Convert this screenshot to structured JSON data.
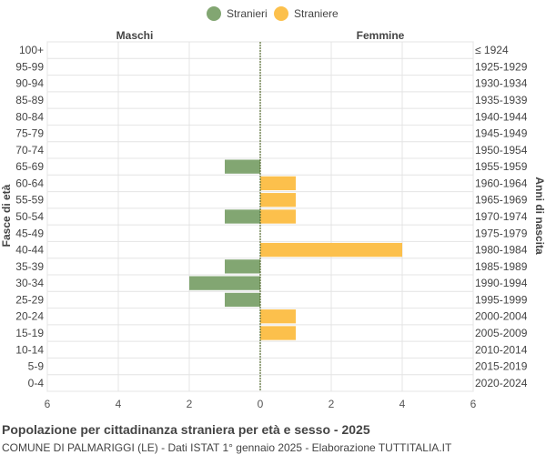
{
  "chart_data": {
    "type": "bar",
    "orientation": "horizontal-pyramid",
    "legend": {
      "position": "top-center",
      "items": [
        {
          "label": "Stranieri",
          "color": "#82a672"
        },
        {
          "label": "Straniere",
          "color": "#fcc04c"
        }
      ]
    },
    "left_header": "Maschi",
    "right_header": "Femmine",
    "ylabel_left": "Fasce di età",
    "ylabel_right": "Anni di nascita",
    "x_ticks": [
      "6",
      "4",
      "2",
      "0",
      "2",
      "4",
      "6"
    ],
    "xlim": [
      -6,
      6
    ],
    "grid": true,
    "categories": [
      "100+",
      "95-99",
      "90-94",
      "85-89",
      "80-84",
      "75-79",
      "70-74",
      "65-69",
      "60-64",
      "55-59",
      "50-54",
      "45-49",
      "40-44",
      "35-39",
      "30-34",
      "25-29",
      "20-24",
      "15-19",
      "10-14",
      "5-9",
      "0-4"
    ],
    "birth_years": [
      "≤ 1924",
      "1925-1929",
      "1930-1934",
      "1935-1939",
      "1940-1944",
      "1945-1949",
      "1950-1954",
      "1955-1959",
      "1960-1964",
      "1965-1969",
      "1970-1974",
      "1975-1979",
      "1980-1984",
      "1985-1989",
      "1990-1994",
      "1995-1999",
      "2000-2004",
      "2005-2009",
      "2010-2014",
      "2015-2019",
      "2020-2024"
    ],
    "series": [
      {
        "name": "Stranieri",
        "side": "left",
        "values": [
          0,
          0,
          0,
          0,
          0,
          0,
          0,
          1,
          0,
          0,
          1,
          0,
          0,
          1,
          2,
          1,
          0,
          0,
          0,
          0,
          0
        ]
      },
      {
        "name": "Straniere",
        "side": "right",
        "values": [
          0,
          0,
          0,
          0,
          0,
          0,
          0,
          0,
          1,
          1,
          1,
          0,
          4,
          0,
          0,
          0,
          1,
          1,
          0,
          0,
          0
        ]
      }
    ]
  },
  "footer": {
    "title": "Popolazione per cittadinanza straniera per età e sesso - 2025",
    "subtitle": "COMUNE DI PALMARIGGI (LE) - Dati ISTAT 1° gennaio 2025 - Elaborazione TUTTITALIA.IT"
  }
}
